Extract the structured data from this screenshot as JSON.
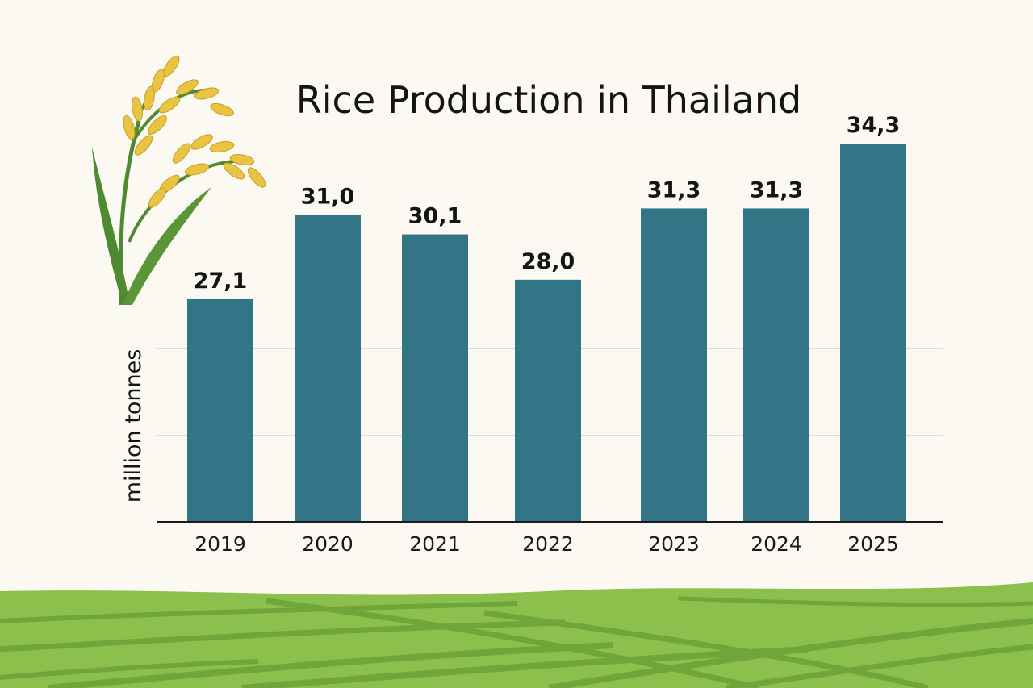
{
  "colors": {
    "background": "#fbf9f1",
    "bar": "#317587",
    "gridline": "#c9d0d0",
    "axis": "#1a1a1a",
    "field_light": "#8cbf4c",
    "field_dark": "#6ea63a",
    "grain": "#e9c443",
    "leaf": "#4f8a32"
  },
  "icons": {
    "decoration": "rice-plant-icon",
    "landscape": "rice-field-icon"
  },
  "chart_data": {
    "type": "bar",
    "title": "Rice Production in Thailand",
    "ylabel": "million tonnes",
    "xlabel": "",
    "categories": [
      "2019",
      "2020",
      "2021",
      "2022",
      "2023",
      "2024",
      "2025"
    ],
    "values": [
      27.1,
      31.0,
      30.1,
      28.0,
      31.3,
      31.3,
      34.3
    ],
    "value_labels": [
      "27,1",
      "31,0",
      "30,1",
      "28,0",
      "31,3",
      "31,3",
      "34,3"
    ],
    "grid": true
  }
}
